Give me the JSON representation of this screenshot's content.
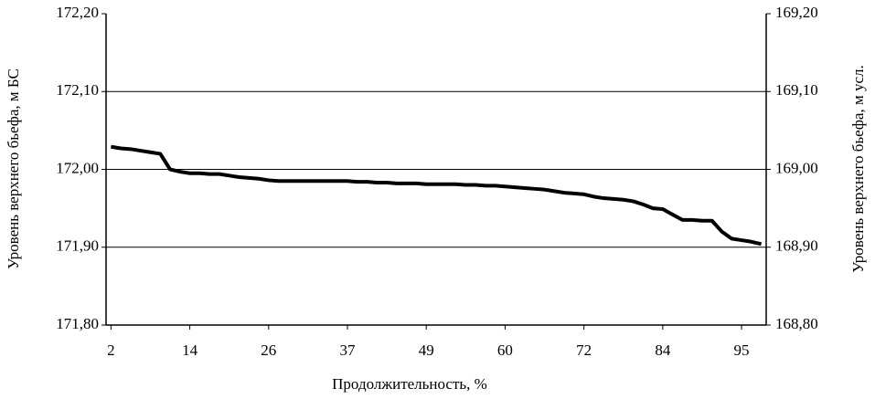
{
  "chart_data": {
    "type": "line",
    "x_label": "Продолжительность, %",
    "y_label": "Уровень верхнего бьефа, м БС",
    "y2_label": "Уровень верхнего бьефа, м  усл.",
    "categories": [
      "2",
      null,
      null,
      null,
      null,
      null,
      null,
      null,
      "14",
      null,
      null,
      null,
      null,
      null,
      null,
      null,
      "26",
      null,
      null,
      null,
      null,
      null,
      null,
      null,
      "37",
      null,
      null,
      null,
      null,
      null,
      null,
      null,
      "49",
      null,
      null,
      null,
      null,
      null,
      null,
      null,
      "60",
      null,
      null,
      null,
      null,
      null,
      null,
      null,
      "72",
      null,
      null,
      null,
      null,
      null,
      null,
      null,
      "84",
      null,
      null,
      null,
      null,
      null,
      null,
      null,
      "95",
      null,
      null
    ],
    "series": [
      {
        "color": "#000000",
        "values": [
          172.029,
          172.027,
          172.026,
          172.024,
          172.022,
          172.02,
          172.0,
          171.997,
          171.995,
          171.995,
          171.994,
          171.994,
          171.992,
          171.99,
          171.989,
          171.988,
          171.986,
          171.985,
          171.985,
          171.985,
          171.985,
          171.985,
          171.985,
          171.985,
          171.985,
          171.984,
          171.984,
          171.983,
          171.983,
          171.982,
          171.982,
          171.982,
          171.981,
          171.981,
          171.981,
          171.981,
          171.98,
          171.98,
          171.979,
          171.979,
          171.978,
          171.977,
          171.976,
          171.975,
          171.974,
          171.972,
          171.97,
          171.969,
          171.968,
          171.965,
          171.963,
          171.962,
          171.961,
          171.959,
          171.955,
          171.95,
          171.949,
          171.942,
          171.935,
          171.935,
          171.934,
          171.934,
          171.92,
          171.911,
          171.909,
          171.907,
          171.904
        ]
      }
    ],
    "ylim": [
      171.8,
      172.2
    ],
    "yticks": [
      {
        "value": 171.8,
        "label": "171,80"
      },
      {
        "value": 171.9,
        "label": "171,90"
      },
      {
        "value": 172.0,
        "label": "172,00"
      },
      {
        "value": 172.1,
        "label": "172,10"
      },
      {
        "value": 172.2,
        "label": "172,20"
      }
    ],
    "y2lim": [
      168.8,
      169.2
    ],
    "y2ticks": [
      {
        "value": 168.8,
        "label": "168,80"
      },
      {
        "value": 168.9,
        "label": "168,90"
      },
      {
        "value": 169.0,
        "label": "169,00"
      },
      {
        "value": 169.1,
        "label": "169,10"
      },
      {
        "value": 169.2,
        "label": "169,20"
      }
    ],
    "grid": true
  }
}
